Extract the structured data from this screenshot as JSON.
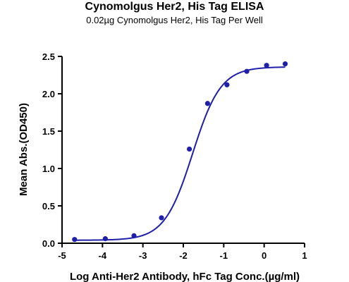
{
  "chart_data": {
    "type": "scatter",
    "title": "Cynomolgus Her2, His Tag ELISA",
    "subtitle": "0.02µg Cynomolgus Her2, His Tag Per Well",
    "xlabel": "Log Anti-Her2 Antibody, hFc Tag Conc.(µg/ml)",
    "ylabel": "Mean Abs.(OD450)",
    "xlim": [
      -5,
      1
    ],
    "ylim": [
      0,
      2.5
    ],
    "xticks": [
      "-5",
      "-4",
      "-3",
      "-2",
      "-1",
      "0",
      "1"
    ],
    "yticks": [
      "0.0",
      "0.5",
      "1.0",
      "1.5",
      "2.0",
      "2.5"
    ],
    "grid": false,
    "colors": {
      "series": "#1f1fa8"
    },
    "series": [
      {
        "x": [
          -4.69,
          -3.93,
          -3.22,
          -2.54,
          -1.85,
          -1.4,
          -0.92,
          -0.43,
          0.06,
          0.52
        ],
        "y": [
          0.05,
          0.06,
          0.1,
          0.34,
          1.26,
          1.87,
          2.12,
          2.3,
          2.38,
          2.4
        ]
      }
    ],
    "fit": {
      "model": "4PL",
      "bottom": 0.04,
      "top": 2.36,
      "logEC50": -1.77,
      "hill": 1.25
    }
  }
}
